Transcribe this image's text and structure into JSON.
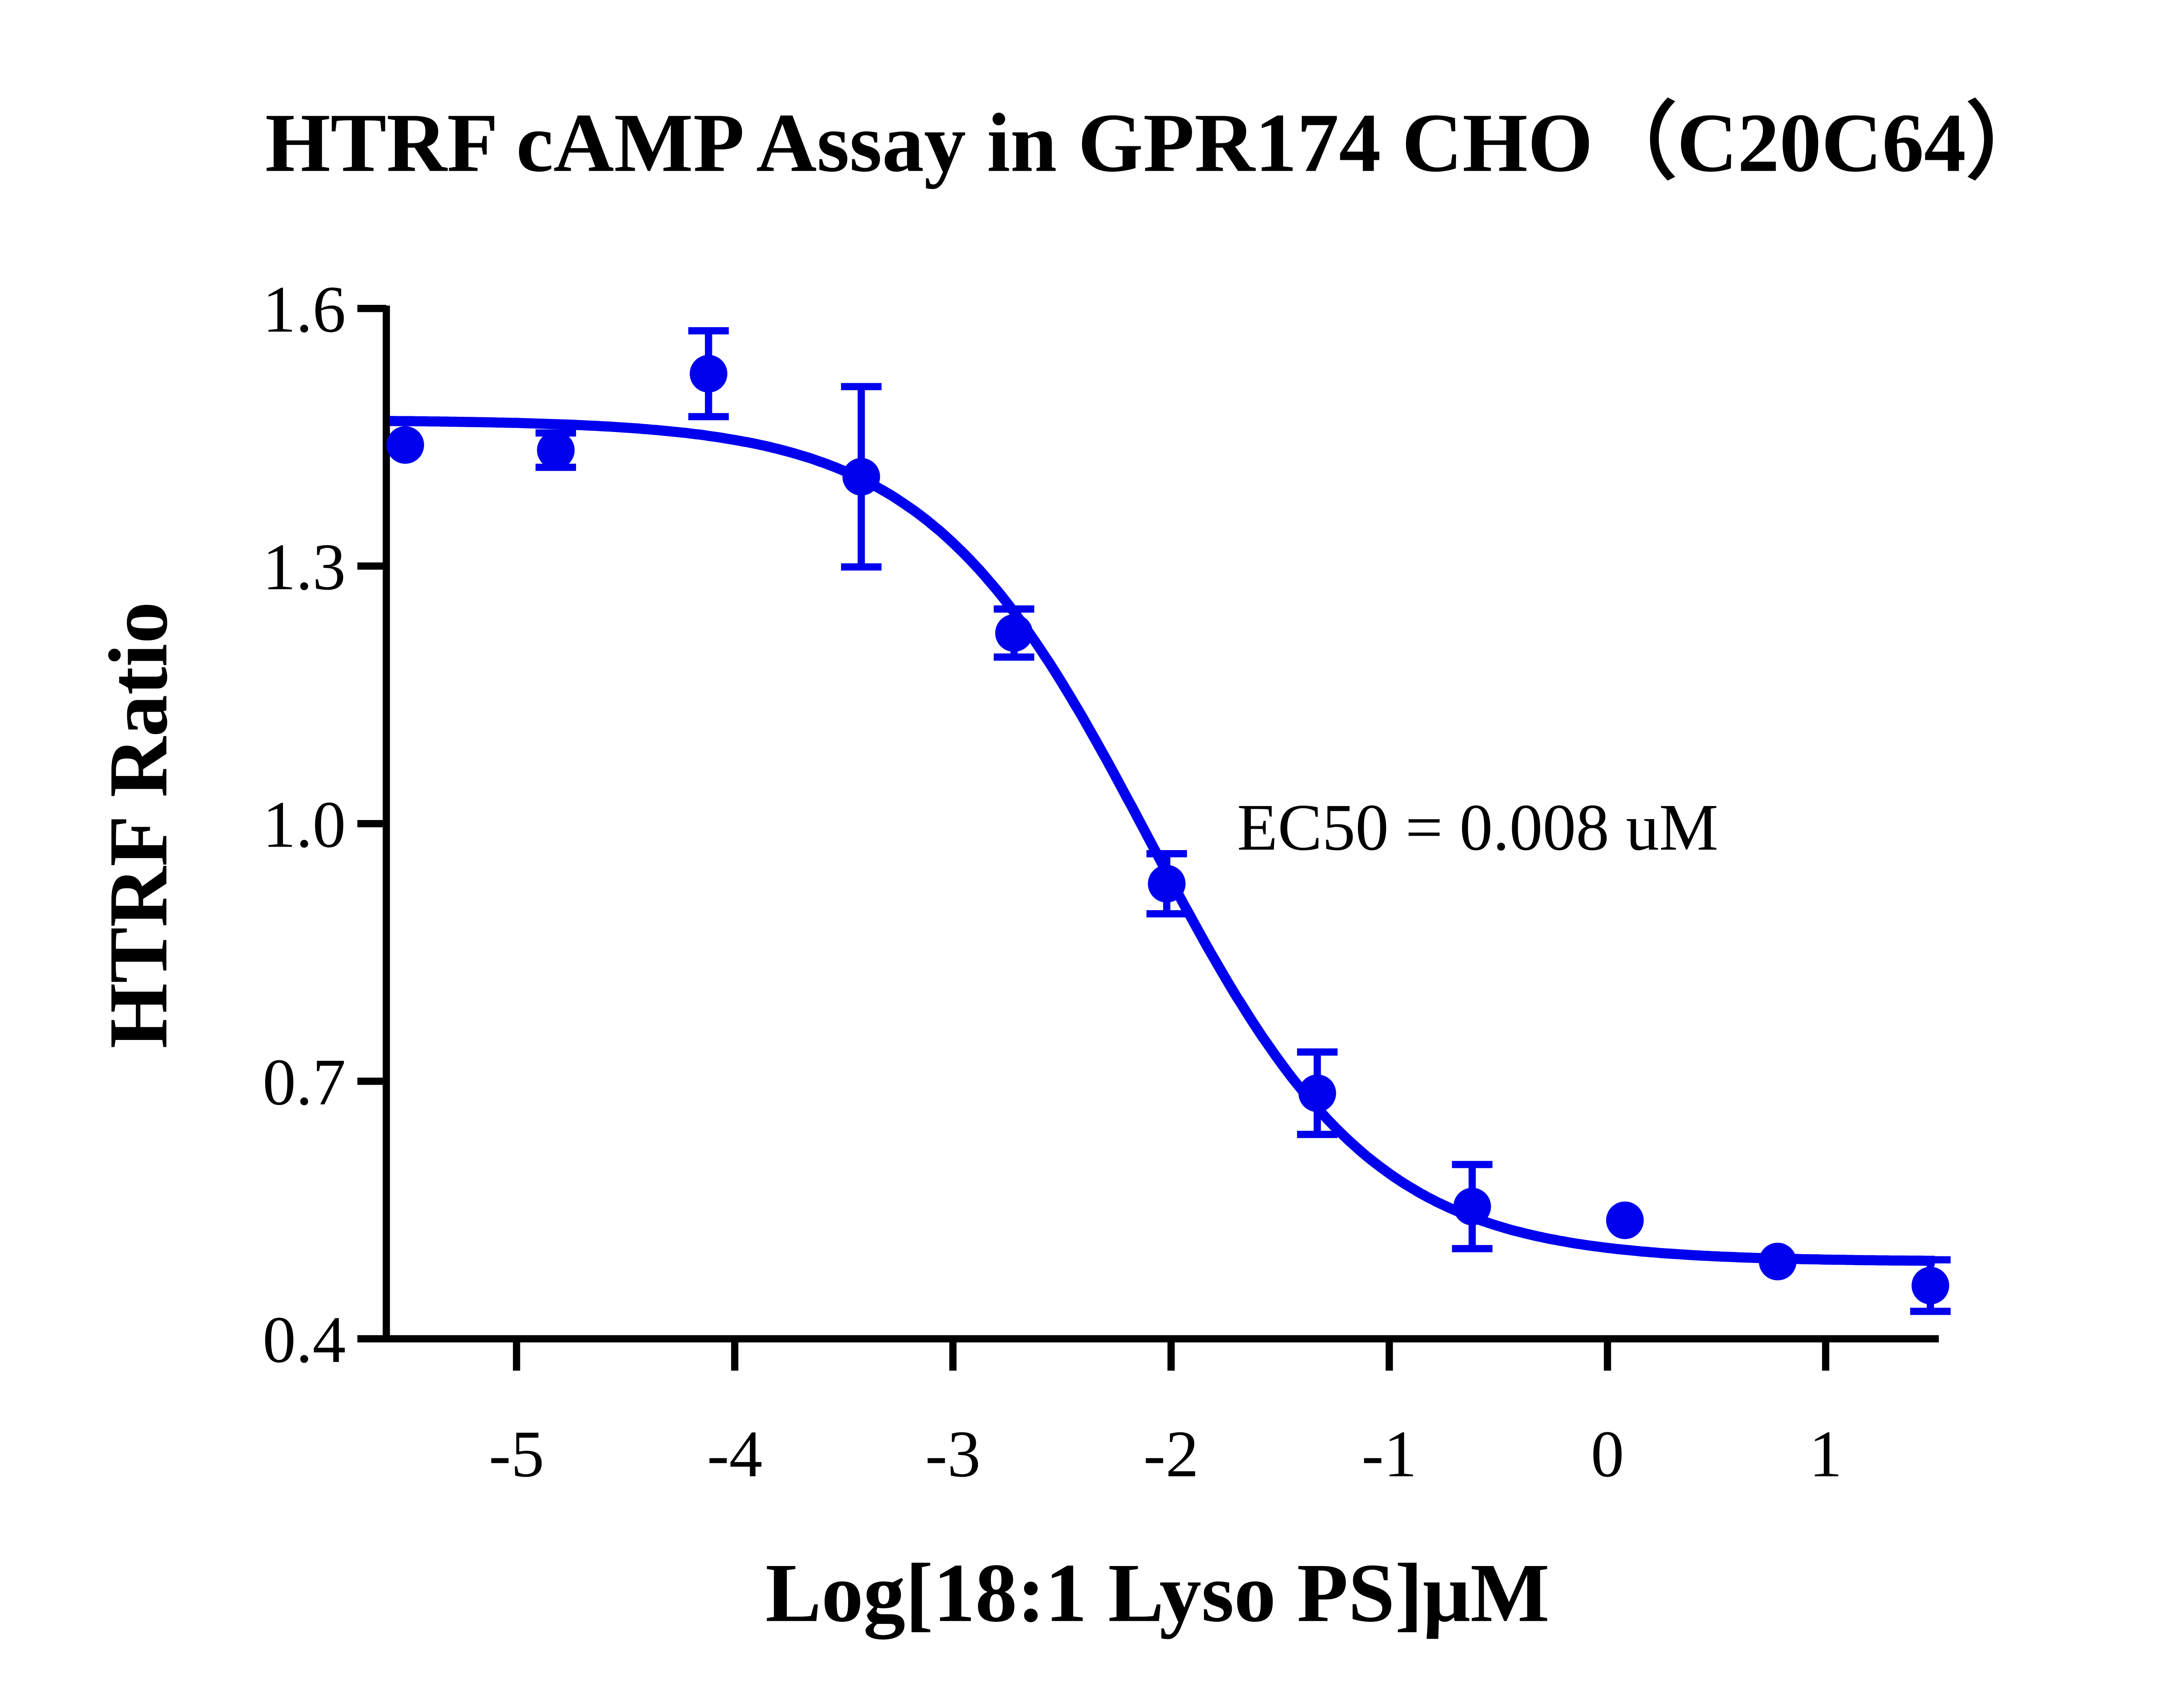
{
  "chart_data": {
    "type": "scatter",
    "title": "HTRF cAMP Assay in GPR174 CHO（C20C64）",
    "xlabel": "Log[18:1 Lyso PS]μM",
    "ylabel": "HTRF Ratio",
    "xlim": [
      -5.6,
      1.5
    ],
    "ylim": [
      0.4,
      1.6
    ],
    "xticks": [
      -5,
      -4,
      -3,
      -2,
      -1,
      0,
      1
    ],
    "xtick_labels": [
      "-5",
      "-4",
      "-3",
      "-2",
      "-1",
      "0",
      "1"
    ],
    "yticks": [
      0.4,
      0.7,
      1.0,
      1.3,
      1.6
    ],
    "ytick_labels": [
      "0.4",
      "0.7",
      "1.0",
      "1.3",
      "1.6"
    ],
    "grid": false,
    "color": "#0000ee",
    "annotation": "EC50 = 0.008 uM",
    "series": [
      {
        "x": [
          -5.51,
          -4.82,
          -4.12,
          -3.42,
          -2.72,
          -2.02,
          -1.33,
          -0.62,
          0.08,
          0.78,
          1.48
        ],
        "y": [
          1.441,
          1.435,
          1.524,
          1.404,
          1.222,
          0.93,
          0.686,
          0.554,
          0.538,
          0.49,
          0.462
        ],
        "error": [
          0.0,
          0.02,
          0.05,
          0.105,
          0.028,
          0.035,
          0.048,
          0.049,
          0.0,
          0.0,
          0.03
        ]
      }
    ],
    "fit": {
      "model": "four-parameter logistic",
      "top": 1.47,
      "bottom": 0.49,
      "logEC50": -2.097,
      "hill_slope": -0.85
    }
  }
}
